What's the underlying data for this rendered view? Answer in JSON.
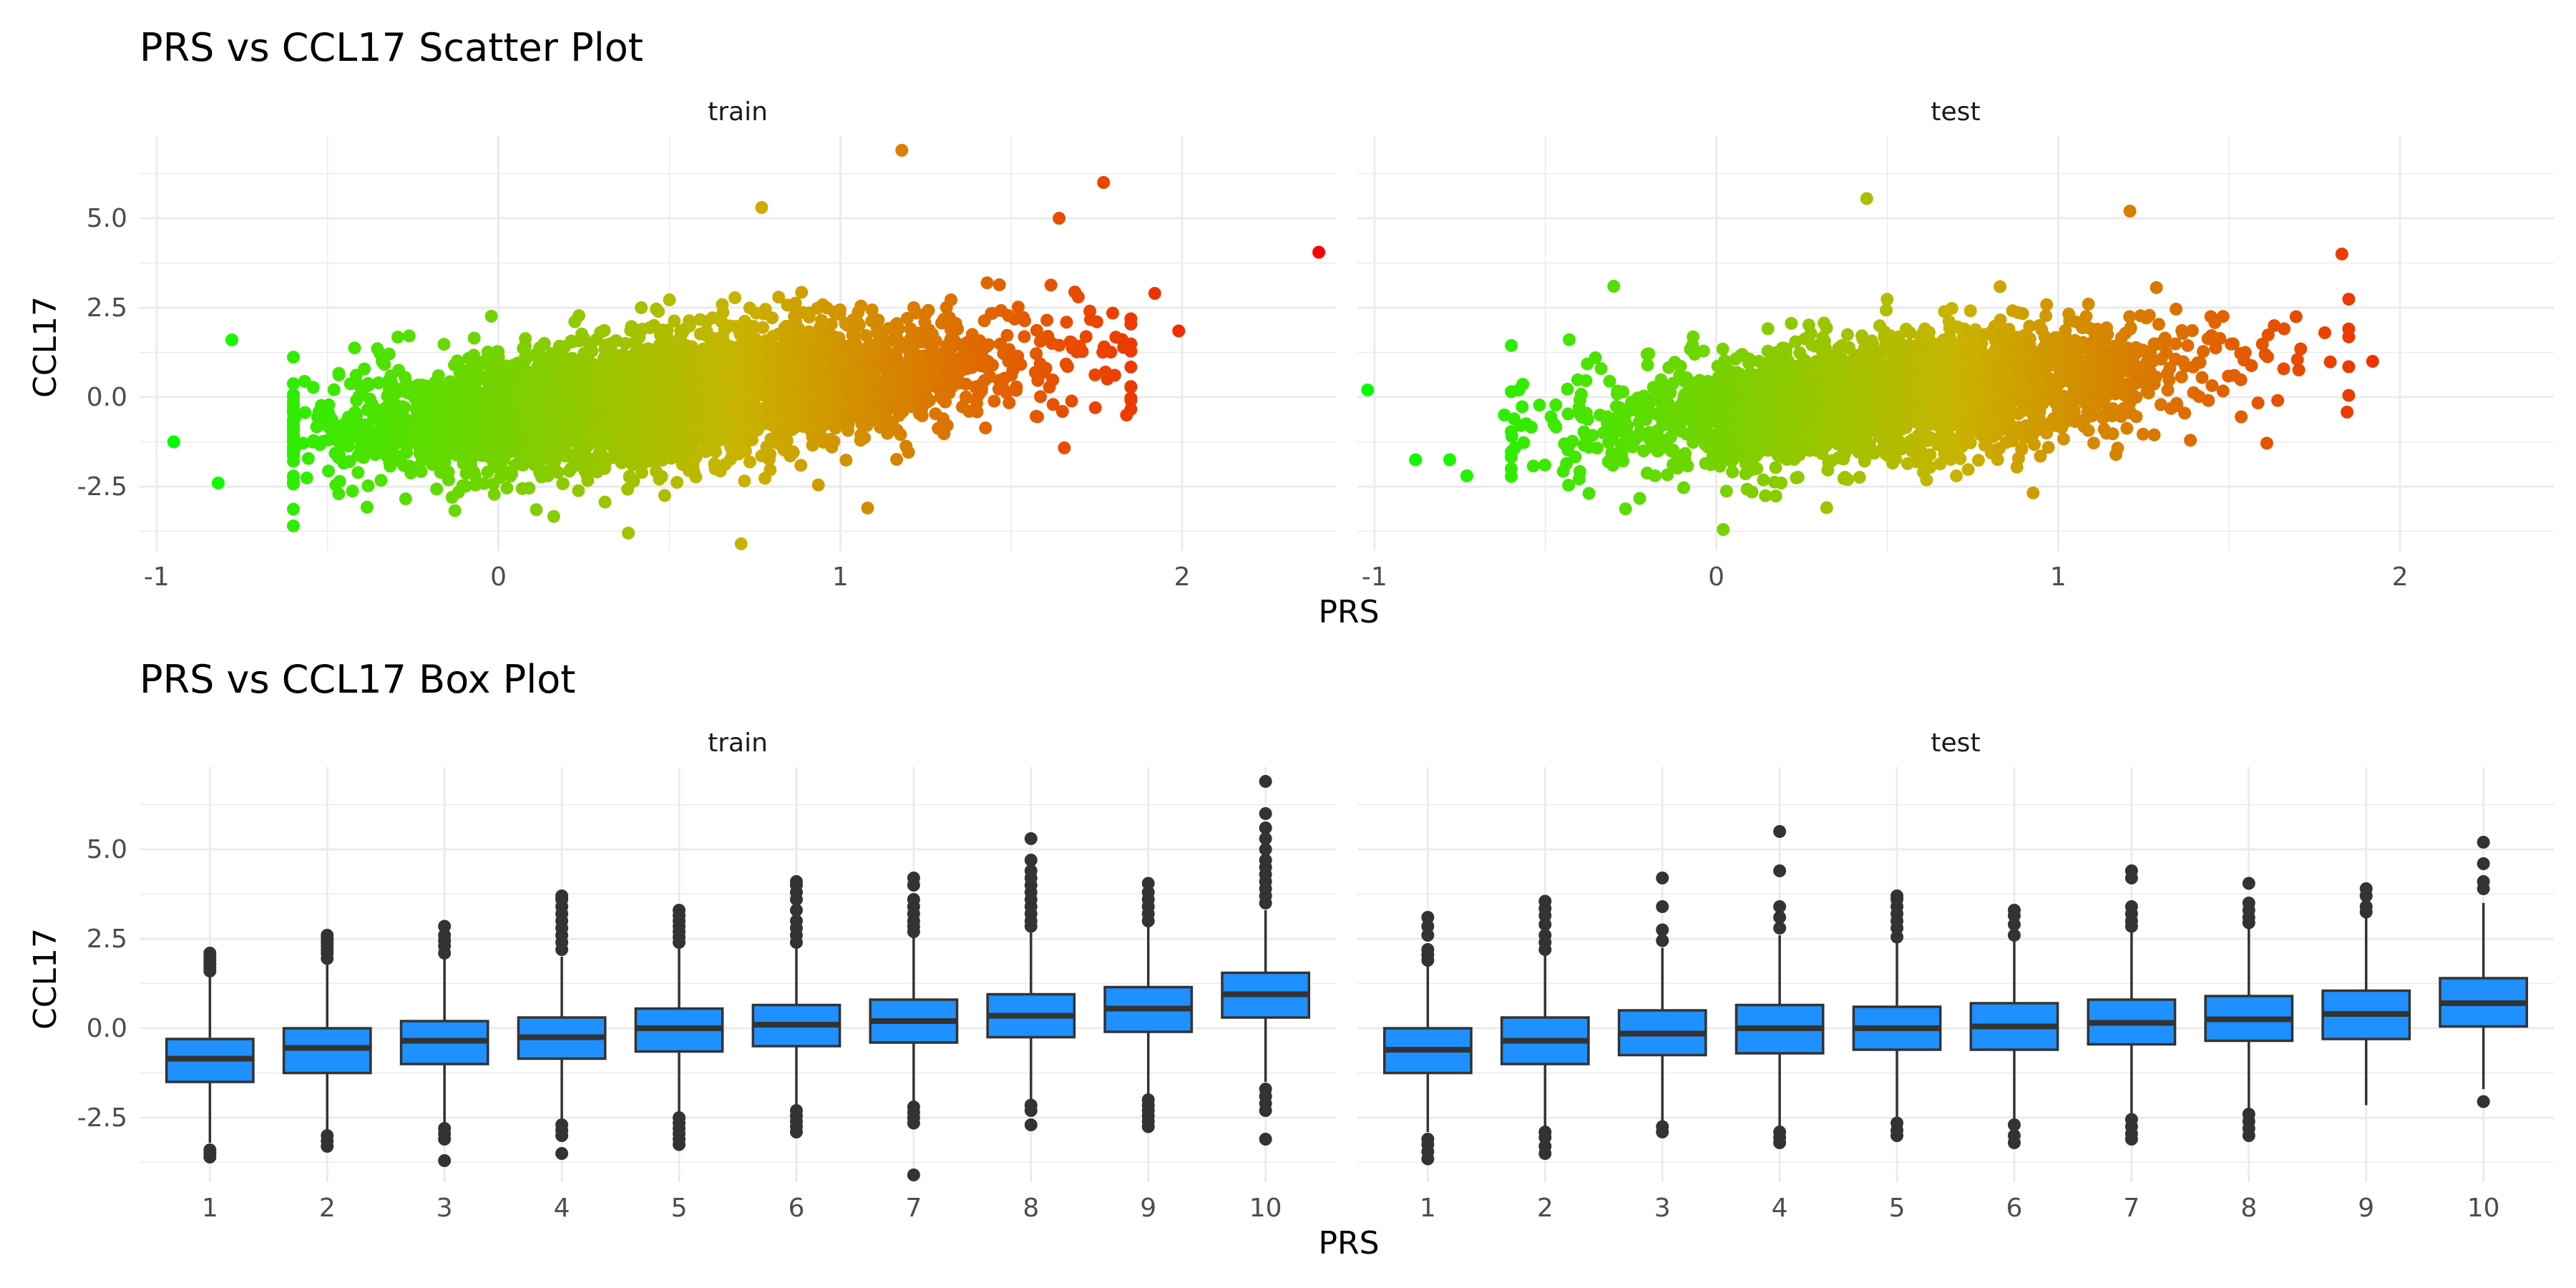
{
  "chart_data": [
    {
      "type": "scatter",
      "title": "PRS vs CCL17 Scatter Plot",
      "xlabel": "PRS",
      "ylabel": "CCL17",
      "xlim": [
        -1.05,
        2.45
      ],
      "ylim": [
        -4.3,
        7.3
      ],
      "x_ticks": [
        "-1",
        "0",
        "1",
        "2"
      ],
      "y_ticks": [
        "-2.5",
        "0.0",
        "2.5",
        "5.0"
      ],
      "color_scale": {
        "low": "#00ff00",
        "mid": "#c8b400",
        "high": "#ff0000"
      },
      "grid": true,
      "panels": [
        {
          "name": "train",
          "cloud": {
            "n": 4000,
            "x_mean": 0.5,
            "x_sd": 0.48,
            "slope": 1.05,
            "intercept": -0.5,
            "resid_sd": 0.85
          },
          "points": [
            {
              "x": -0.95,
              "y": -1.25
            },
            {
              "x": -0.78,
              "y": 1.6
            },
            {
              "x": -0.82,
              "y": -2.4
            },
            {
              "x": 2.4,
              "y": 4.05
            },
            {
              "x": 1.99,
              "y": 1.85
            },
            {
              "x": 1.92,
              "y": 2.9
            },
            {
              "x": 1.18,
              "y": 6.9
            },
            {
              "x": 1.77,
              "y": 6.0
            },
            {
              "x": 1.64,
              "y": 5.0
            },
            {
              "x": 0.71,
              "y": -4.1
            },
            {
              "x": 1.08,
              "y": -3.1
            },
            {
              "x": 0.38,
              "y": -3.8
            },
            {
              "x": 1.65,
              "y": -0.4
            },
            {
              "x": 0.77,
              "y": 5.3
            }
          ]
        },
        {
          "name": "test",
          "cloud": {
            "n": 2600,
            "x_mean": 0.5,
            "x_sd": 0.42,
            "slope": 0.9,
            "intercept": -0.45,
            "resid_sd": 0.85
          },
          "points": [
            {
              "x": -1.02,
              "y": 0.2
            },
            {
              "x": -0.88,
              "y": -1.75
            },
            {
              "x": -0.78,
              "y": -1.75
            },
            {
              "x": -0.73,
              "y": -2.2
            },
            {
              "x": -0.62,
              "y": -0.5
            },
            {
              "x": -0.3,
              "y": 3.1
            },
            {
              "x": 1.83,
              "y": 4.0
            },
            {
              "x": 1.92,
              "y": 1.0
            },
            {
              "x": 1.85,
              "y": 0.85
            },
            {
              "x": 1.78,
              "y": 1.8
            },
            {
              "x": 1.7,
              "y": 1.05
            },
            {
              "x": 0.44,
              "y": 5.55
            },
            {
              "x": 1.21,
              "y": 5.2
            },
            {
              "x": 0.02,
              "y": -3.7
            }
          ]
        }
      ]
    },
    {
      "type": "box",
      "title": "PRS vs CCL17 Box Plot",
      "xlabel": "PRS",
      "ylabel": "CCL17",
      "ylim": [
        -4.3,
        7.3
      ],
      "y_ticks": [
        "-2.5",
        "0.0",
        "2.5",
        "5.0"
      ],
      "categories": [
        "1",
        "2",
        "3",
        "4",
        "5",
        "6",
        "7",
        "8",
        "9",
        "10"
      ],
      "fill": "#1e90ff",
      "grid": true,
      "panels": [
        {
          "name": "train",
          "boxes": [
            {
              "q1": -1.5,
              "median": -0.85,
              "q3": -0.3,
              "lower": -3.2,
              "upper": 1.5,
              "outliers": [
                -3.4,
                -3.5,
                -3.6,
                1.6,
                1.7,
                1.8,
                1.9,
                2.0,
                2.1
              ]
            },
            {
              "q1": -1.25,
              "median": -0.55,
              "q3": 0.0,
              "lower": -2.9,
              "upper": 1.85,
              "outliers": [
                -3.0,
                -3.15,
                -3.3,
                1.95,
                2.1,
                2.2,
                2.3,
                2.4,
                2.5,
                2.6
              ]
            },
            {
              "q1": -1.0,
              "median": -0.35,
              "q3": 0.2,
              "lower": -2.7,
              "upper": 1.95,
              "outliers": [
                -2.8,
                -2.95,
                -3.1,
                -3.7,
                2.1,
                2.3,
                2.45,
                2.6,
                2.85
              ]
            },
            {
              "q1": -0.85,
              "median": -0.25,
              "q3": 0.3,
              "lower": -2.6,
              "upper": 2.0,
              "outliers": [
                -2.7,
                -2.85,
                -3.0,
                -3.5,
                2.2,
                2.4,
                2.6,
                2.8,
                3.0,
                3.2,
                3.4,
                3.6,
                3.7
              ]
            },
            {
              "q1": -0.65,
              "median": 0.0,
              "q3": 0.55,
              "lower": -2.4,
              "upper": 2.3,
              "outliers": [
                -2.5,
                -2.65,
                -2.8,
                -2.95,
                -3.1,
                -3.25,
                2.4,
                2.55,
                2.7,
                2.85,
                3.0,
                3.15,
                3.3
              ]
            },
            {
              "q1": -0.5,
              "median": 0.1,
              "q3": 0.65,
              "lower": -2.2,
              "upper": 2.3,
              "outliers": [
                -2.3,
                -2.45,
                -2.6,
                -2.75,
                -2.9,
                2.4,
                2.6,
                2.8,
                3.0,
                3.3,
                3.6,
                3.8,
                4.0,
                4.1
              ]
            },
            {
              "q1": -0.4,
              "median": 0.2,
              "q3": 0.8,
              "lower": -2.1,
              "upper": 2.55,
              "outliers": [
                -2.2,
                -2.35,
                -2.5,
                -2.65,
                -4.1,
                2.7,
                2.85,
                3.0,
                3.2,
                3.4,
                3.6,
                4.0,
                4.2
              ]
            },
            {
              "q1": -0.25,
              "median": 0.35,
              "q3": 0.95,
              "lower": -2.0,
              "upper": 2.7,
              "outliers": [
                -2.15,
                -2.3,
                -2.7,
                2.85,
                3.0,
                3.2,
                3.4,
                3.6,
                3.8,
                4.0,
                4.2,
                4.4,
                4.7,
                5.3
              ]
            },
            {
              "q1": -0.1,
              "median": 0.55,
              "q3": 1.15,
              "lower": -1.9,
              "upper": 2.85,
              "outliers": [
                -2.0,
                -2.15,
                -2.3,
                -2.45,
                -2.6,
                -2.75,
                3.0,
                3.2,
                3.4,
                3.6,
                3.8,
                4.05
              ]
            },
            {
              "q1": 0.3,
              "median": 0.95,
              "q3": 1.55,
              "lower": -1.5,
              "upper": 3.3,
              "outliers": [
                -1.7,
                -1.9,
                -2.1,
                -2.3,
                -3.1,
                3.5,
                3.7,
                3.9,
                4.1,
                4.3,
                4.5,
                4.7,
                5.0,
                5.3,
                5.6,
                6.0,
                6.9
              ]
            }
          ]
        },
        {
          "name": "test",
          "boxes": [
            {
              "q1": -1.25,
              "median": -0.6,
              "q3": 0.0,
              "lower": -2.9,
              "upper": 1.75,
              "outliers": [
                -3.1,
                -3.25,
                -3.45,
                -3.65,
                1.9,
                2.05,
                2.2,
                2.6,
                2.85,
                3.1
              ]
            },
            {
              "q1": -1.0,
              "median": -0.35,
              "q3": 0.3,
              "lower": -2.8,
              "upper": 2.05,
              "outliers": [
                -2.9,
                -3.05,
                -3.3,
                -3.5,
                2.2,
                2.4,
                2.6,
                2.9,
                3.15,
                3.35,
                3.55
              ]
            },
            {
              "q1": -0.75,
              "median": -0.15,
              "q3": 0.5,
              "lower": -2.65,
              "upper": 2.25,
              "outliers": [
                -2.75,
                -2.9,
                2.45,
                2.75,
                3.4,
                4.2
              ]
            },
            {
              "q1": -0.7,
              "median": 0.0,
              "q3": 0.65,
              "lower": -2.8,
              "upper": 2.6,
              "outliers": [
                -2.9,
                -3.05,
                -3.2,
                2.8,
                3.1,
                3.4,
                4.4,
                5.5
              ]
            },
            {
              "q1": -0.6,
              "median": 0.0,
              "q3": 0.6,
              "lower": -2.5,
              "upper": 2.4,
              "outliers": [
                -2.65,
                -2.85,
                -3.0,
                2.55,
                2.8,
                3.0,
                3.2,
                3.4,
                3.6,
                3.7
              ]
            },
            {
              "q1": -0.6,
              "median": 0.05,
              "q3": 0.7,
              "lower": -2.55,
              "upper": 2.45,
              "outliers": [
                -2.7,
                -3.0,
                -3.2,
                2.6,
                2.9,
                3.15,
                3.3
              ]
            },
            {
              "q1": -0.45,
              "median": 0.15,
              "q3": 0.8,
              "lower": -2.4,
              "upper": 2.7,
              "outliers": [
                -2.55,
                -2.75,
                -2.95,
                -3.1,
                2.85,
                3.0,
                3.2,
                3.4,
                4.2,
                4.4
              ]
            },
            {
              "q1": -0.35,
              "median": 0.25,
              "q3": 0.9,
              "lower": -2.25,
              "upper": 2.8,
              "outliers": [
                -2.4,
                -2.6,
                -2.8,
                -3.0,
                2.95,
                3.1,
                3.3,
                3.5,
                4.05
              ]
            },
            {
              "q1": -0.3,
              "median": 0.4,
              "q3": 1.05,
              "lower": -2.15,
              "upper": 3.1,
              "outliers": [
                3.25,
                3.4,
                3.7,
                3.9
              ]
            },
            {
              "q1": 0.05,
              "median": 0.7,
              "q3": 1.4,
              "lower": -1.7,
              "upper": 3.5,
              "outliers": [
                -2.05,
                3.9,
                4.1,
                4.6,
                5.2
              ]
            }
          ]
        }
      ]
    }
  ]
}
